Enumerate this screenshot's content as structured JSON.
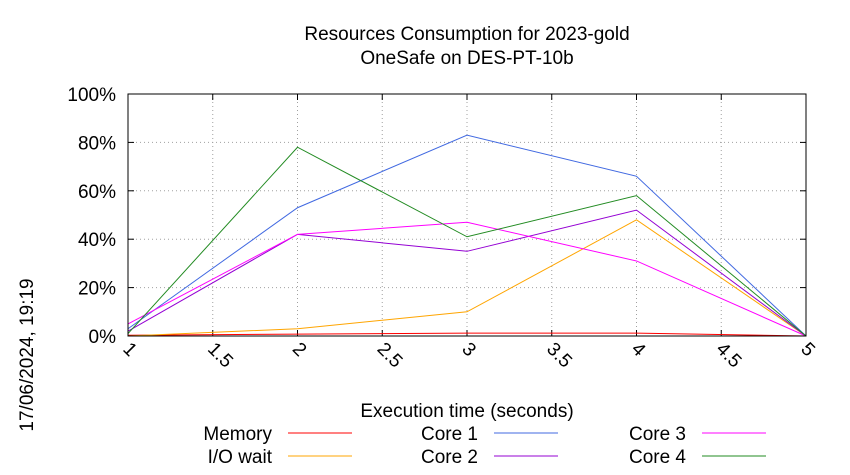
{
  "chart_data": {
    "type": "line",
    "title": "Resources Consumption for 2023-gold",
    "subtitle": "OneSafe on DES-PT-10b",
    "xlabel": "Execution time (seconds)",
    "ylabel": "",
    "timestamp": "17/06/2024, 19:19",
    "xlim": [
      1,
      5
    ],
    "ylim": [
      0,
      100
    ],
    "x_ticks": [
      "1",
      "1.5",
      "2",
      "2.5",
      "3",
      "3.5",
      "4",
      "4.5",
      "5"
    ],
    "y_ticks": [
      "0%",
      "20%",
      "40%",
      "60%",
      "80%",
      "100%"
    ],
    "grid": true,
    "legend_position": "bottom",
    "x": [
      1,
      2,
      3,
      4,
      5
    ],
    "series": [
      {
        "name": "Memory",
        "color": "#ff0000",
        "values": [
          0.3,
          0.8,
          1.2,
          1.2,
          0
        ]
      },
      {
        "name": "I/O wait",
        "color": "#ffa500",
        "values": [
          0,
          3,
          10,
          48,
          0
        ]
      },
      {
        "name": "Core 1",
        "color": "#4169e1",
        "values": [
          3,
          53,
          83,
          66,
          0
        ]
      },
      {
        "name": "Core 2",
        "color": "#9400d3",
        "values": [
          2,
          42,
          35,
          52,
          0
        ]
      },
      {
        "name": "Core 3",
        "color": "#ff00ff",
        "values": [
          5,
          42,
          47,
          31,
          0
        ]
      },
      {
        "name": "Core 4",
        "color": "#228b22",
        "values": [
          1,
          78,
          41,
          58,
          0
        ]
      }
    ]
  }
}
